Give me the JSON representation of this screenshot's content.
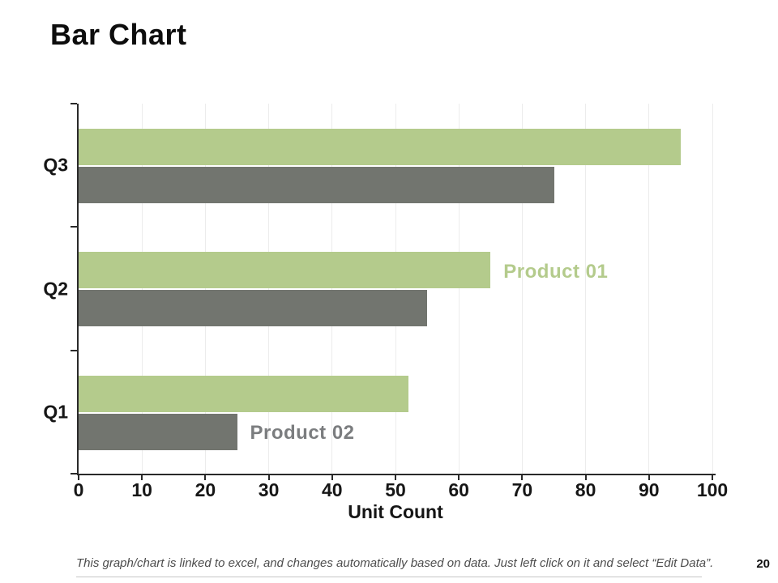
{
  "slide": {
    "title": "Bar Chart",
    "footer": "This graph/chart is linked to excel, and changes automatically based on data. Just left click on it and select “Edit Data”.",
    "page_number": "20"
  },
  "chart_data": {
    "type": "bar",
    "orientation": "horizontal",
    "title": "Bar Chart",
    "categories": [
      "Q3",
      "Q2",
      "Q1"
    ],
    "series": [
      {
        "name": "Product 01",
        "color": "#b4cb8c",
        "values": [
          95,
          65,
          52
        ]
      },
      {
        "name": "Product 02",
        "color": "#72756f",
        "values": [
          75,
          55,
          25
        ]
      }
    ],
    "xlabel": "Unit Count",
    "ylabel": "",
    "xlim": [
      0,
      100
    ],
    "xticks": [
      0,
      10,
      20,
      30,
      40,
      50,
      60,
      70,
      80,
      90,
      100
    ],
    "grid": "vertical-light",
    "legend_position": "inline-annotations",
    "axis_color": "#2a2a2a",
    "grid_color": "#ececec",
    "annotations": [
      {
        "text": "Product 01",
        "color": "#b4cb8c",
        "series_index": 0,
        "category_index": 1
      },
      {
        "text": "Product 02",
        "color": "#7b7d7f",
        "series_index": 1,
        "category_index": 2
      }
    ]
  }
}
